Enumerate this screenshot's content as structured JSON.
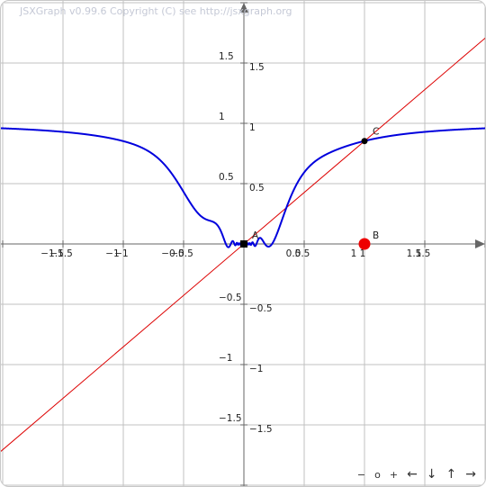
{
  "copyright": "JSXGraph v0.99.6 Copyright (C) see http://jsxgraph.org",
  "navigation": [
    {
      "name": "zoom-out-button",
      "label": "−"
    },
    {
      "name": "zoom-reset-button",
      "label": "o"
    },
    {
      "name": "zoom-in-button",
      "label": "+"
    },
    {
      "name": "pan-left-button",
      "label": "←"
    },
    {
      "name": "pan-down-button",
      "label": "↓"
    },
    {
      "name": "pan-up-button",
      "label": "↑"
    },
    {
      "name": "pan-right-button",
      "label": "→"
    }
  ],
  "chart_data": {
    "type": "line",
    "title": "",
    "xlabel": "",
    "ylabel": "",
    "xlim": [
      -2.0,
      2.0
    ],
    "ylim": [
      -2.0,
      2.0
    ],
    "grid": true,
    "x_ticks": [
      {
        "value": -1.5,
        "label": "−1.5"
      },
      {
        "value": -1,
        "label": "−1"
      },
      {
        "value": -0.5,
        "label": "−0.5"
      },
      {
        "value": 0.5,
        "label": "0.5"
      },
      {
        "value": 1,
        "label": "1"
      },
      {
        "value": 1.5,
        "label": "1.5"
      }
    ],
    "y_ticks": [
      {
        "value": 1.5,
        "label": "1.5"
      },
      {
        "value": 1,
        "label": "1"
      },
      {
        "value": 0.5,
        "label": "0.5"
      },
      {
        "value": -0.5,
        "label": "−0.5"
      },
      {
        "value": -1,
        "label": "−1"
      },
      {
        "value": -1.5,
        "label": "−1.5"
      }
    ],
    "series": [
      {
        "color": "#0000dd",
        "curve": "x*x*sin(1/x)/(x*x*sin(1/x)+0.2*... ) approx",
        "x_range": [
          -2.0,
          2.0
        ]
      }
    ],
    "line": {
      "color": "#dd0000",
      "through": [
        [
          0,
          0
        ],
        [
          1,
          0.853
        ]
      ]
    },
    "points": [
      {
        "label": "A",
        "x": 0,
        "y": 0,
        "color": "#000000"
      },
      {
        "label": "B",
        "x": 1,
        "y": 0,
        "color": "#ee0000"
      },
      {
        "label": "C",
        "x": 1,
        "y": 0.853,
        "color": "#000000"
      }
    ]
  }
}
